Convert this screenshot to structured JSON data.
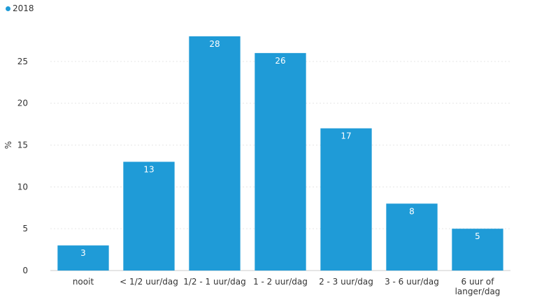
{
  "colors": {
    "bar": "#1f9bd7",
    "grid": "#e6e6e6",
    "axis": "#cccccc",
    "text": "#333333"
  },
  "legend": {
    "label": "2018"
  },
  "chart_data": {
    "type": "bar",
    "categories": [
      "nooit",
      "< 1/2 uur/dag",
      "1/2 - 1 uur/dag",
      "1 - 2 uur/dag",
      "2 - 3 uur/dag",
      "3 - 6 uur/dag",
      "6 uur of langer/dag"
    ],
    "category_lines": [
      [
        "nooit"
      ],
      [
        "< 1/2 uur/dag"
      ],
      [
        "1/2 - 1 uur/dag"
      ],
      [
        "1 - 2 uur/dag"
      ],
      [
        "2 - 3 uur/dag"
      ],
      [
        "3 - 6 uur/dag"
      ],
      [
        "6 uur of",
        "langer/dag"
      ]
    ],
    "series": [
      {
        "name": "2018",
        "values": [
          3,
          13,
          28,
          26,
          17,
          8,
          5
        ]
      }
    ],
    "ylabel": "%",
    "xlabel": "",
    "ylim": [
      0,
      30
    ],
    "yticks": [
      0,
      5,
      10,
      15,
      20,
      25
    ],
    "grid": true,
    "legend_position": "top-left"
  }
}
